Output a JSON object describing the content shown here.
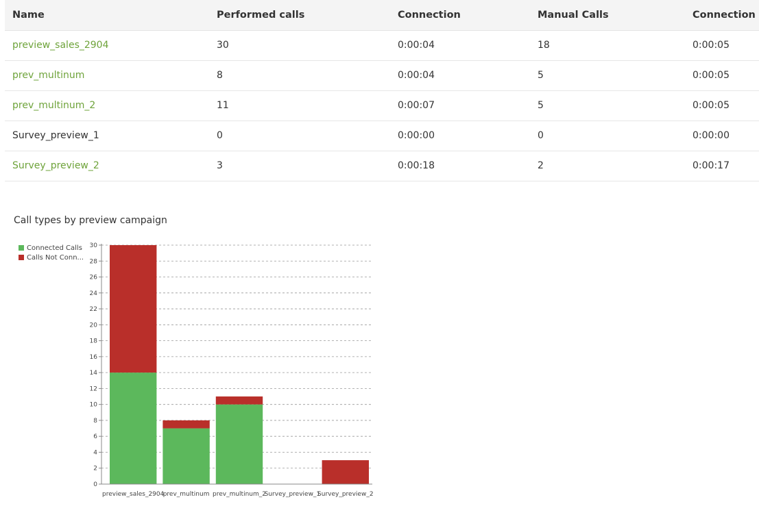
{
  "table": {
    "headers": [
      "Name",
      "Performed calls",
      "Connection",
      "Manual Calls",
      "Connection"
    ],
    "rows": [
      {
        "name": "preview_sales_2904",
        "link": true,
        "performed": "30",
        "connection": "0:00:04",
        "manual": "18",
        "connection2": "0:00:05"
      },
      {
        "name": "prev_multinum",
        "link": true,
        "performed": "8",
        "connection": "0:00:04",
        "manual": "5",
        "connection2": "0:00:05"
      },
      {
        "name": "prev_multinum_2",
        "link": true,
        "performed": "11",
        "connection": "0:00:07",
        "manual": "5",
        "connection2": "0:00:05"
      },
      {
        "name": "Survey_preview_1",
        "link": false,
        "performed": "0",
        "connection": "0:00:00",
        "manual": "0",
        "connection2": "0:00:00"
      },
      {
        "name": "Survey_preview_2",
        "link": true,
        "performed": "3",
        "connection": "0:00:18",
        "manual": "2",
        "connection2": "0:00:17"
      }
    ]
  },
  "colors": {
    "link": "#6ea33a",
    "connected": "#5cb85c",
    "not_connected": "#b92f2a",
    "grid": "#999999"
  },
  "chart_data": {
    "type": "bar",
    "stacked": true,
    "title": "Call types by preview campaign",
    "categories": [
      "preview_sales_2904",
      "prev_multinum",
      "prev_multinum_2",
      "Survey_preview_1",
      "Survey_preview_2"
    ],
    "series": [
      {
        "name": "Connected Calls",
        "legend_label": "Connected Calls",
        "values": [
          14,
          7,
          10,
          0,
          0
        ]
      },
      {
        "name": "Calls Not Connected",
        "legend_label": "Calls Not Conn...",
        "values": [
          16,
          1,
          1,
          0,
          3
        ]
      }
    ],
    "ylim": [
      0,
      30
    ],
    "yticks": [
      0,
      2,
      4,
      6,
      8,
      10,
      12,
      14,
      16,
      18,
      20,
      22,
      24,
      26,
      28,
      30
    ],
    "grid": true,
    "legend_position": "left"
  }
}
